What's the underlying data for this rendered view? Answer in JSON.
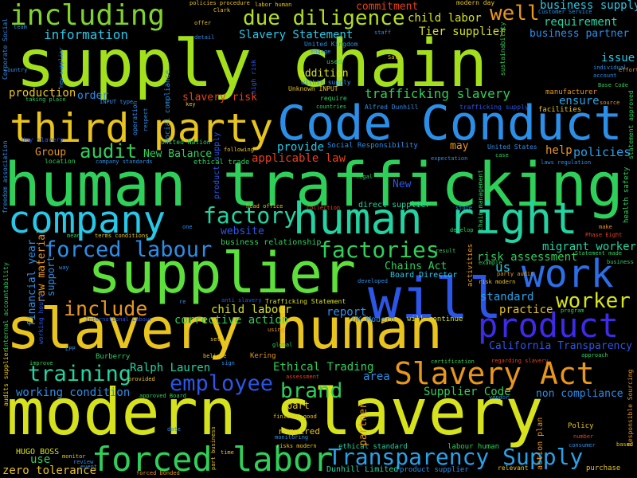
{
  "words": [
    {
      "text": "supply chain",
      "color": "#a3e01c"
    },
    {
      "text": "modern slavery",
      "color": "#d6e21b"
    },
    {
      "text": "human trafficking",
      "color": "#2fd05a"
    },
    {
      "text": "slavery human",
      "color": "#e8c41c"
    },
    {
      "text": "Code Conduct",
      "color": "#2b8fe8"
    },
    {
      "text": "supplier",
      "color": "#5ee03a"
    },
    {
      "text": "human right",
      "color": "#23d4a2"
    },
    {
      "text": "third party",
      "color": "#e8c41c"
    },
    {
      "text": "company",
      "color": "#27c8e8"
    },
    {
      "text": "will",
      "color": "#2b56e6"
    },
    {
      "text": "work",
      "color": "#2b6fe8"
    },
    {
      "text": "product",
      "color": "#3e2be8"
    },
    {
      "text": "Slavery Act",
      "color": "#e8961c"
    },
    {
      "text": "forced labor",
      "color": "#2fd05a"
    },
    {
      "text": "Transparency Supply",
      "color": "#27a2e8"
    },
    {
      "text": "including",
      "color": "#7fd32b"
    },
    {
      "text": "due diligence",
      "color": "#b2e01c"
    },
    {
      "text": "forced labour",
      "color": "#2b8fe8"
    },
    {
      "text": "factory",
      "color": "#23d4a2"
    },
    {
      "text": "factories",
      "color": "#2fd05a"
    },
    {
      "text": "worker",
      "color": "#d6e21b"
    },
    {
      "text": "employee",
      "color": "#2b56e6"
    },
    {
      "text": "training",
      "color": "#23d4a2"
    },
    {
      "text": "brand",
      "color": "#2fd05a"
    },
    {
      "text": "audit",
      "color": "#2fd05a"
    },
    {
      "text": "include",
      "color": "#e8961c"
    },
    {
      "text": "well",
      "color": "#e8961c"
    },
    {
      "text": "information",
      "color": "#27c8e8"
    },
    {
      "text": "Slavery Statement",
      "color": "#27c8e8"
    },
    {
      "text": "child labor",
      "color": "#d6e21b"
    },
    {
      "text": "Tier supplier",
      "color": "#d6e21b"
    },
    {
      "text": "business supply",
      "color": "#27c8e8"
    },
    {
      "text": "requirement",
      "color": "#23d4a2"
    },
    {
      "text": "business partner",
      "color": "#2b8fe8"
    },
    {
      "text": "trafficking slavery",
      "color": "#2fd05a"
    },
    {
      "text": "applicable law",
      "color": "#e8401c"
    },
    {
      "text": "New Balance",
      "color": "#2fd05a"
    },
    {
      "text": "Group",
      "color": "#e8961c"
    },
    {
      "text": "provide",
      "color": "#27c8e8"
    },
    {
      "text": "may",
      "color": "#e8961c"
    },
    {
      "text": "help",
      "color": "#e8961c"
    },
    {
      "text": "policies",
      "color": "#27a2e8"
    },
    {
      "text": "issue",
      "color": "#27c8e8"
    },
    {
      "text": "production",
      "color": "#e8c41c"
    },
    {
      "text": "order",
      "color": "#2b8fe8"
    },
    {
      "text": "slavery risk",
      "color": "#e8401c"
    },
    {
      "text": "ensure",
      "color": "#27a2e8"
    },
    {
      "text": "addition",
      "color": "#d6e21b"
    },
    {
      "text": "commitment",
      "color": "#e8401c"
    },
    {
      "text": "website",
      "color": "#2b56e6"
    },
    {
      "text": "migrant worker",
      "color": "#23d4a2"
    },
    {
      "text": "risk assessment",
      "color": "#2fd05a"
    },
    {
      "text": "us",
      "color": "#27c8e8"
    },
    {
      "text": "Chains Act",
      "color": "#2fd05a"
    },
    {
      "text": "standard",
      "color": "#27a2e8"
    },
    {
      "text": "practice",
      "color": "#e8c41c"
    },
    {
      "text": "child labour",
      "color": "#d6e21b"
    },
    {
      "text": "corrective action",
      "color": "#2fd05a"
    },
    {
      "text": "report",
      "color": "#2b8fe8"
    },
    {
      "text": "California Transparency",
      "color": "#2b56e6"
    },
    {
      "text": "Ralph Lauren",
      "color": "#23d4a2"
    },
    {
      "text": "Ethical Trading",
      "color": "#2fd05a"
    },
    {
      "text": "area",
      "color": "#2b8fe8"
    },
    {
      "text": "Supplier Code",
      "color": "#2fd05a"
    },
    {
      "text": "non compliance",
      "color": "#2b8fe8"
    },
    {
      "text": "working condition",
      "color": "#2b8fe8"
    },
    {
      "text": "use",
      "color": "#2fd05a"
    },
    {
      "text": "part",
      "color": "#e8c41c"
    },
    {
      "text": "required",
      "color": "#e8c41c"
    },
    {
      "text": "zero tolerance",
      "color": "#e8c41c"
    },
    {
      "text": "HUGO BOSS",
      "color": "#d6e21b"
    },
    {
      "text": "Dunhill Limited",
      "color": "#23d4a2"
    },
    {
      "text": "product supplier",
      "color": "#2b8fe8"
    },
    {
      "text": "ethical standard",
      "color": "#23d4a2"
    },
    {
      "text": "labour human",
      "color": "#2fd05a"
    },
    {
      "text": "Board Director",
      "color": "#27c8e8"
    },
    {
      "text": "UK Modern",
      "color": "#2b8fe8"
    },
    {
      "text": "will continue",
      "color": "#d6e21b"
    },
    {
      "text": "direct supplier",
      "color": "#23d4a2"
    },
    {
      "text": "business relationship",
      "color": "#2fd05a"
    },
    {
      "text": "Social Responsibility",
      "color": "#2b8fe8"
    },
    {
      "text": "United States",
      "color": "#2b8fe8"
    },
    {
      "text": "ethical trade",
      "color": "#2fd05a"
    },
    {
      "text": "United Nation",
      "color": "#2fd05a"
    },
    {
      "text": "company standards",
      "color": "#2b8fe8"
    },
    {
      "text": "New",
      "color": "#2b56e6"
    },
    {
      "text": "financial year",
      "color": "#2b8fe8"
    },
    {
      "text": "raw material",
      "color": "#e8961c"
    },
    {
      "text": "support",
      "color": "#2b8fe8"
    },
    {
      "text": "modern day",
      "color": "#e8c41c"
    },
    {
      "text": "United Kingdom",
      "color": "#2b8fe8"
    },
    {
      "text": "Customer Service",
      "color": "#2b8fe8"
    },
    {
      "text": "Alfred Dunhill",
      "color": "#2b8fe8"
    },
    {
      "text": "Phase Eight",
      "color": "#e8401c"
    },
    {
      "text": "Burberry",
      "color": "#2fd05a"
    },
    {
      "text": "Kering",
      "color": "#e8961c"
    },
    {
      "text": "facilities",
      "color": "#e8c41c"
    },
    {
      "text": "manufacturer",
      "color": "#e8961c"
    },
    {
      "text": "Policy",
      "color": "#e8c41c"
    },
    {
      "text": "purchase",
      "color": "#e8c41c"
    },
    {
      "text": "relevant",
      "color": "#e8c41c"
    },
    {
      "text": "anti slavery",
      "color": "#2b56e6"
    },
    {
      "text": "Trafficking Statement",
      "color": "#d6e21b"
    },
    {
      "text": "labor human",
      "color": "#e8c41c"
    },
    {
      "text": "Clark",
      "color": "#e8c41c"
    },
    {
      "text": "policies procedure",
      "color": "#e8c41c"
    },
    {
      "text": "high risk",
      "color": "#2b56e6"
    },
    {
      "text": "sustainability",
      "color": "#2fd05a"
    },
    {
      "text": "Corporate Social",
      "color": "#2b8fe8"
    },
    {
      "text": "social compliance",
      "color": "#2b8fe8"
    },
    {
      "text": "product supply",
      "color": "#2b56e6"
    },
    {
      "text": "health safety",
      "color": "#2fd05a"
    },
    {
      "text": "statement approved",
      "color": "#2fd05a"
    },
    {
      "text": "Responsible Sourcing",
      "color": "#e8961c"
    },
    {
      "text": "chain management",
      "color": "#2fd05a"
    },
    {
      "text": "action plan",
      "color": "#e8961c"
    },
    {
      "text": "partner",
      "color": "#e8961c"
    },
    {
      "text": "internal accountability",
      "color": "#2fd05a"
    },
    {
      "text": "working hours",
      "color": "#2b56e6"
    },
    {
      "text": "audits supplier",
      "color": "#e8c41c"
    },
    {
      "text": "freedom association",
      "color": "#2b8fe8"
    },
    {
      "text": "activities",
      "color": "#e8961c"
    },
    {
      "text": "within supply",
      "color": "#2b8fe8"
    },
    {
      "text": "Unknown INPUT",
      "color": "#e8c41c"
    },
    {
      "text": "INPUT type",
      "color": "#2b8fe8"
    },
    {
      "text": "taking place",
      "color": "#2fd05a"
    },
    {
      "text": "International Labour",
      "color": "#2b56e6"
    },
    {
      "text": "regarding slavery",
      "color": "#e8401c"
    },
    {
      "text": "certification",
      "color": "#2fd05a"
    },
    {
      "text": "approach",
      "color": "#2fd05a"
    },
    {
      "text": "program",
      "color": "#2fd05a"
    },
    {
      "text": "risk modern",
      "color": "#e8c41c"
    },
    {
      "text": "party audit",
      "color": "#e8961c"
    },
    {
      "text": "developed",
      "color": "#2b8fe8"
    },
    {
      "text": "result",
      "color": "#2fd05a"
    },
    {
      "text": "develop",
      "color": "#2fd05a"
    },
    {
      "text": "example",
      "color": "#2fd05a"
    },
    {
      "text": "Statement made",
      "color": "#2fd05a"
    },
    {
      "text": "business",
      "color": "#2fd05a"
    },
    {
      "text": "make",
      "color": "#e8961c"
    },
    {
      "text": "laws regulation",
      "color": "#2b8fe8"
    },
    {
      "text": "expectation",
      "color": "#2b8fe8"
    },
    {
      "text": "location",
      "color": "#2fd05a"
    },
    {
      "text": "day slavery",
      "color": "#2b56e6"
    },
    {
      "text": "head office",
      "color": "#e8c41c"
    },
    {
      "text": "collection",
      "color": "#e8401c"
    },
    {
      "text": "store",
      "color": "#2b8fe8"
    },
    {
      "text": "terms conditions",
      "color": "#e8c41c"
    },
    {
      "text": "mean",
      "color": "#2fd05a"
    },
    {
      "text": "one",
      "color": "#2b8fe8"
    },
    {
      "text": "way",
      "color": "#2b8fe8"
    },
    {
      "text": "re",
      "color": "#2b8fe8"
    },
    {
      "text": "LPP",
      "color": "#2b8fe8"
    },
    {
      "text": "global",
      "color": "#2fd05a"
    },
    {
      "text": "set",
      "color": "#e8c41c"
    },
    {
      "text": "using",
      "color": "#e8961c"
    },
    {
      "text": "believe",
      "color": "#e8c41c"
    },
    {
      "text": "sign",
      "color": "#2b8fe8"
    },
    {
      "text": "improve",
      "color": "#2fd05a"
    },
    {
      "text": "provided",
      "color": "#e8c41c"
    },
    {
      "text": "assessment",
      "color": "#e8401c"
    },
    {
      "text": "approved Board",
      "color": "#2fd05a"
    },
    {
      "text": "finished good",
      "color": "#e8c41c"
    },
    {
      "text": "monitoring",
      "color": "#2b8fe8"
    },
    {
      "text": "risks modern",
      "color": "#e8c41c"
    },
    {
      "text": "vendor",
      "color": "#2b8fe8"
    },
    {
      "text": "number",
      "color": "#e8401c"
    },
    {
      "text": "consumer",
      "color": "#2b8fe8"
    },
    {
      "text": "based",
      "color": "#e8c41c"
    },
    {
      "text": "monitor",
      "color": "#e8c41c"
    },
    {
      "text": "review",
      "color": "#2b8fe8"
    },
    {
      "text": "event",
      "color": "#2b8fe8"
    },
    {
      "text": "forced bonded",
      "color": "#e8961c"
    },
    {
      "text": "time",
      "color": "#e8c41c"
    },
    {
      "text": "part business",
      "color": "#e8c41c"
    },
    {
      "text": "date",
      "color": "#2b8fe8"
    },
    {
      "text": "offer",
      "color": "#e8c41c"
    },
    {
      "text": "detail",
      "color": "#2b8fe8"
    },
    {
      "text": "team",
      "color": "#2b8fe8"
    },
    {
      "text": "staff",
      "color": "#2b8fe8"
    },
    {
      "text": "country",
      "color": "#2b8fe8"
    },
    {
      "text": "new supplier",
      "color": "#2b8fe8"
    },
    {
      "text": "engage",
      "color": "#2b8fe8"
    },
    {
      "text": "used",
      "color": "#2fd05a"
    },
    {
      "text": "Sale",
      "color": "#e8c41c"
    },
    {
      "text": "individual",
      "color": "#2b8fe8"
    },
    {
      "text": "account",
      "color": "#2b8fe8"
    },
    {
      "text": "effort",
      "color": "#e8961c"
    },
    {
      "text": "Base Code",
      "color": "#2fd05a"
    },
    {
      "text": "source",
      "color": "#e8961c"
    },
    {
      "text": "key",
      "color": "#e8c41c"
    },
    {
      "text": "countries",
      "color": "#2fd05a"
    },
    {
      "text": "require",
      "color": "#2fd05a"
    },
    {
      "text": "trafficking supply",
      "color": "#2b56e6"
    },
    {
      "text": "case",
      "color": "#2fd05a"
    },
    {
      "text": "legal",
      "color": "#2fd05a"
    },
    {
      "text": "operation",
      "color": "#2b8fe8"
    },
    {
      "text": "respect",
      "color": "#2b8fe8"
    },
    {
      "text": "following",
      "color": "#e8c41c"
    }
  ]
}
